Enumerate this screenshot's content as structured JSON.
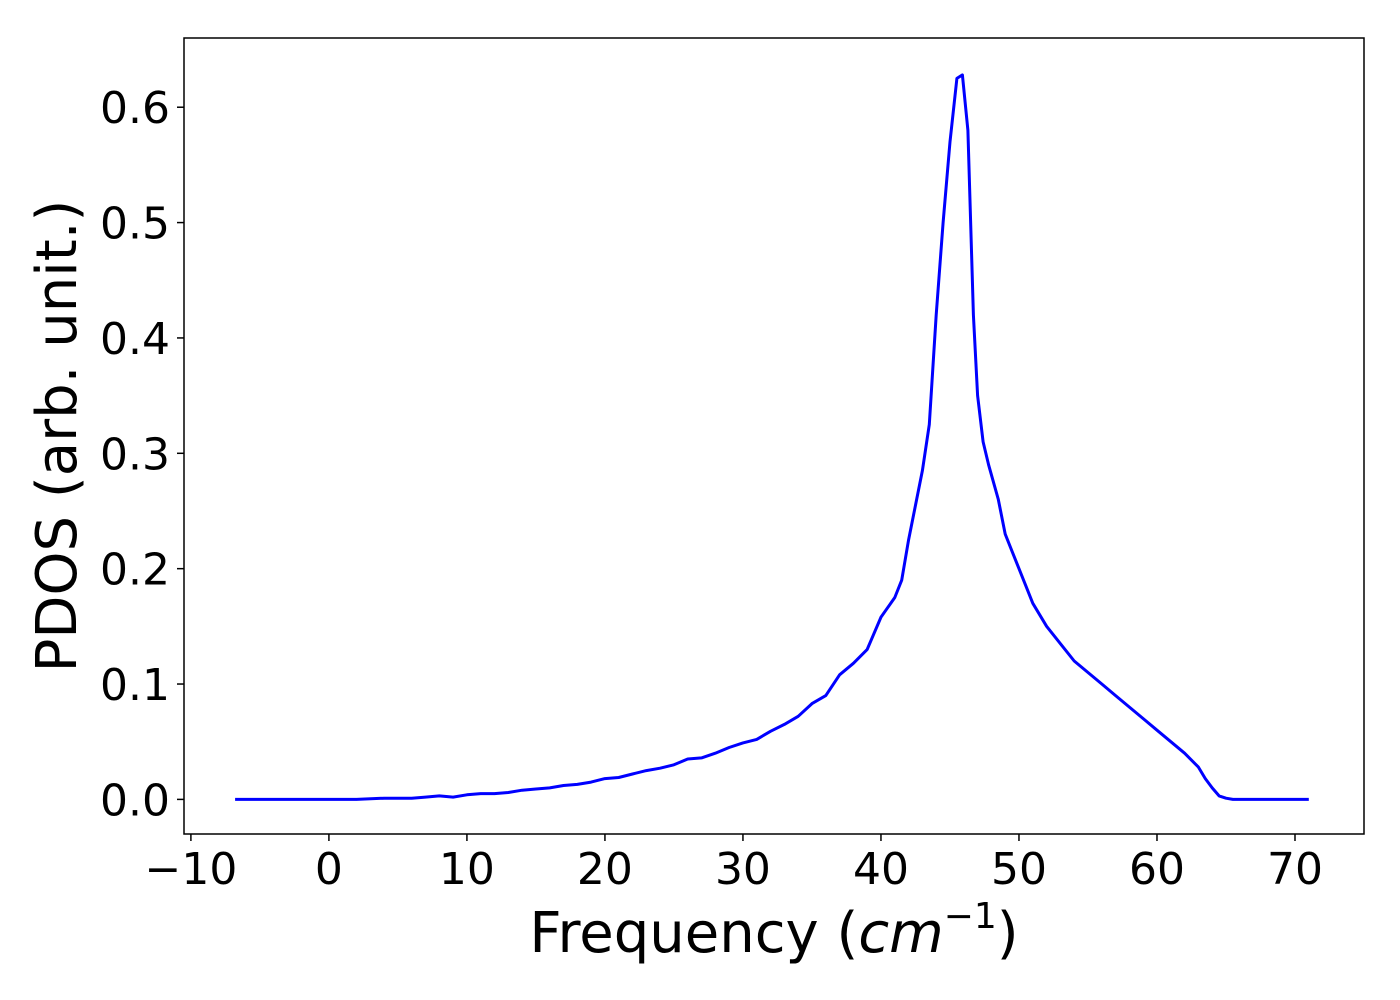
{
  "chart_data": {
    "type": "line",
    "xlabel": "Frequency (",
    "xlabel_unit_base": "cm",
    "xlabel_unit_exp": "−1",
    "xlabel_close": ")",
    "ylabel": "PDOS (arb. unit.)",
    "xlim": [
      -10.5,
      75
    ],
    "ylim": [
      -0.03,
      0.66
    ],
    "xticks": [
      -10,
      0,
      10,
      20,
      30,
      40,
      50,
      60,
      70
    ],
    "xtick_labels": [
      "−10",
      "0",
      "10",
      "20",
      "30",
      "40",
      "50",
      "60",
      "70"
    ],
    "yticks": [
      0.0,
      0.1,
      0.2,
      0.3,
      0.4,
      0.5,
      0.6
    ],
    "ytick_labels": [
      "0.0",
      "0.1",
      "0.2",
      "0.3",
      "0.4",
      "0.5",
      "0.6"
    ],
    "grid": false,
    "line_color": "#0000ff",
    "series": [
      {
        "x": [
          -6.8,
          -4,
          0,
          2,
          4,
          6,
          7,
          8,
          9,
          10,
          11,
          12,
          13,
          14,
          15,
          16,
          17,
          18,
          19,
          20,
          21,
          22,
          23,
          24,
          25,
          26,
          27,
          28,
          29,
          30,
          31,
          32,
          33,
          34,
          35,
          36,
          37,
          38,
          39,
          40,
          41,
          41.5,
          42,
          42.5,
          43,
          43.5,
          44,
          44.5,
          45,
          45.5,
          45.9,
          46.3,
          46.7,
          47,
          47.4,
          47.8,
          48.5,
          49,
          49.5,
          50,
          51,
          52,
          53,
          54,
          55,
          56,
          57,
          58,
          59,
          60,
          61,
          62,
          63,
          63.5,
          64,
          64.5,
          65,
          65.5,
          66,
          67,
          68,
          70,
          71
        ],
        "y": [
          0.0,
          0.0,
          0.0,
          0.0,
          0.001,
          0.001,
          0.002,
          0.003,
          0.002,
          0.004,
          0.005,
          0.005,
          0.006,
          0.008,
          0.009,
          0.01,
          0.012,
          0.013,
          0.015,
          0.018,
          0.019,
          0.022,
          0.025,
          0.027,
          0.03,
          0.035,
          0.036,
          0.04,
          0.045,
          0.049,
          0.052,
          0.059,
          0.065,
          0.072,
          0.083,
          0.09,
          0.108,
          0.118,
          0.13,
          0.158,
          0.175,
          0.19,
          0.225,
          0.255,
          0.285,
          0.325,
          0.42,
          0.5,
          0.57,
          0.625,
          0.628,
          0.58,
          0.42,
          0.35,
          0.31,
          0.29,
          0.26,
          0.23,
          0.215,
          0.2,
          0.17,
          0.15,
          0.135,
          0.12,
          0.11,
          0.1,
          0.09,
          0.08,
          0.07,
          0.06,
          0.05,
          0.04,
          0.028,
          0.018,
          0.01,
          0.003,
          0.001,
          0.0,
          0.0,
          0.0,
          0.0,
          0.0,
          0.0
        ]
      }
    ]
  }
}
